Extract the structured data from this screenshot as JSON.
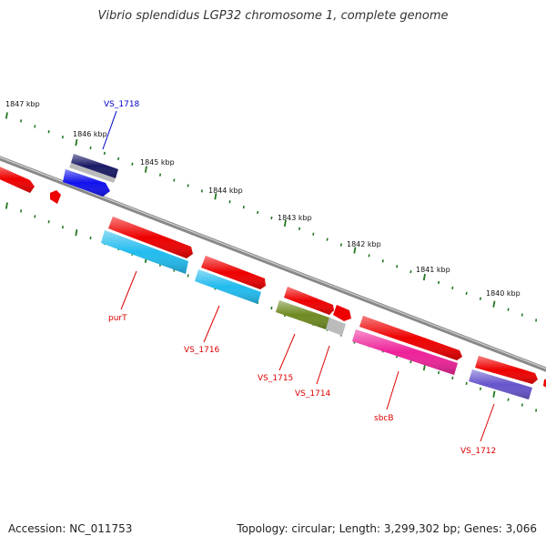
{
  "title": "Vibrio splendidus LGP32 chromosome 1, complete genome",
  "footer": {
    "accession": "Accession: NC_011753",
    "summary": "Topology: circular; Length: 3,299,302 bp; Genes: 3,066"
  },
  "kbp_labels": [
    "1847 kbp",
    "1846 kbp",
    "1845 kbp",
    "1844 kbp",
    "1843 kbp",
    "1842 kbp",
    "1841 kbp",
    "1840 kbp"
  ],
  "gene_labels": [
    {
      "id": "vs1718",
      "text": "VS_1718",
      "color": "#0000cc"
    },
    {
      "id": "purT",
      "text": "purT",
      "color": "#dd0000"
    },
    {
      "id": "vs1716",
      "text": "VS_1716",
      "color": "#dd0000"
    },
    {
      "id": "vs1715",
      "text": "VS_1715",
      "color": "#dd0000"
    },
    {
      "id": "vs1714",
      "text": "VS_1714",
      "color": "#dd0000"
    },
    {
      "id": "sbcB",
      "text": "sbcB",
      "color": "#dd0000"
    },
    {
      "id": "vs1712",
      "text": "VS_1712",
      "color": "#dd0000"
    }
  ],
  "colors": {
    "backbone": "#888888",
    "cds": "#ee0000",
    "gene_blue": "#1111ee",
    "gene_navy": "#1a1a66",
    "gene_cyan": "#22bbee",
    "gene_olive": "#6f8a22",
    "gene_magenta": "#ee2299",
    "gene_purple": "#6655cc",
    "gene_gray": "#bbbbbb",
    "tick": "#227722"
  }
}
